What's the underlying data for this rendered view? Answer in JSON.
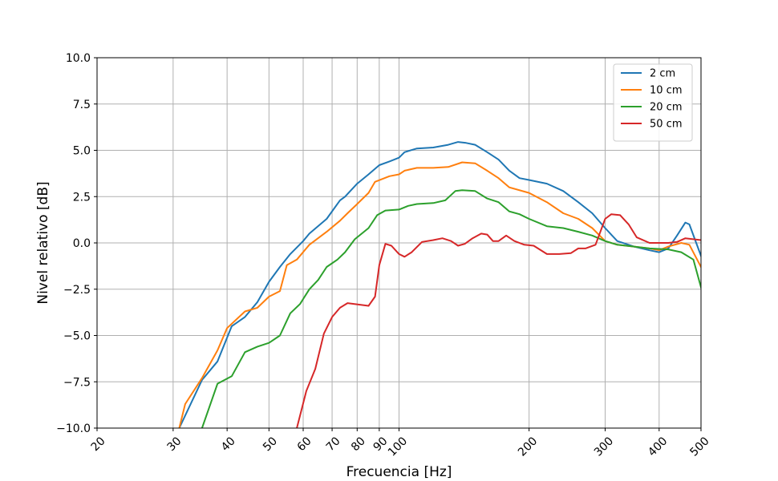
{
  "chart_data": {
    "type": "line",
    "title": "",
    "xlabel": "Frecuencia [Hz]",
    "ylabel": "Nivel relativo [dB]",
    "xscale": "log",
    "xlim": [
      20,
      500
    ],
    "ylim": [
      -10,
      10
    ],
    "grid": true,
    "legend_position": "top-right",
    "xticks": [
      20,
      30,
      40,
      50,
      60,
      70,
      80,
      90,
      100,
      200,
      300,
      400,
      500
    ],
    "xtick_labels": [
      "20",
      "30",
      "40",
      "50",
      "60",
      "70",
      "80",
      "90",
      "100",
      "200",
      "300",
      "400",
      "500"
    ],
    "yticks": [
      -10,
      -7.5,
      -5,
      -2.5,
      0,
      2.5,
      5,
      7.5,
      10
    ],
    "ytick_labels": [
      "−10.0",
      "−7.5",
      "−5.0",
      "−2.5",
      "0.0",
      "2.5",
      "5.0",
      "7.5",
      "10.0"
    ],
    "series": [
      {
        "name": "2 cm",
        "color": "#1f77b4",
        "points": [
          [
            30,
            -11
          ],
          [
            31,
            -10
          ],
          [
            35,
            -7.4
          ],
          [
            38,
            -6.4
          ],
          [
            41,
            -4.5
          ],
          [
            44,
            -4
          ],
          [
            47,
            -3.2
          ],
          [
            50,
            -2.1
          ],
          [
            53,
            -1.3
          ],
          [
            56,
            -0.6
          ],
          [
            60,
            0.1
          ],
          [
            62,
            0.5
          ],
          [
            68,
            1.3
          ],
          [
            73,
            2.3
          ],
          [
            75,
            2.5
          ],
          [
            80,
            3.2
          ],
          [
            85,
            3.7
          ],
          [
            90,
            4.2
          ],
          [
            95,
            4.4
          ],
          [
            100,
            4.6
          ],
          [
            103,
            4.9
          ],
          [
            110,
            5.1
          ],
          [
            120,
            5.15
          ],
          [
            130,
            5.3
          ],
          [
            137,
            5.45
          ],
          [
            143,
            5.4
          ],
          [
            150,
            5.3
          ],
          [
            160,
            4.9
          ],
          [
            170,
            4.5
          ],
          [
            180,
            3.9
          ],
          [
            190,
            3.5
          ],
          [
            200,
            3.4
          ],
          [
            220,
            3.2
          ],
          [
            240,
            2.8
          ],
          [
            260,
            2.2
          ],
          [
            280,
            1.6
          ],
          [
            300,
            0.8
          ],
          [
            320,
            0.1
          ],
          [
            350,
            -0.2
          ],
          [
            380,
            -0.4
          ],
          [
            400,
            -0.5
          ],
          [
            420,
            -0.3
          ],
          [
            440,
            0.4
          ],
          [
            460,
            1.1
          ],
          [
            470,
            1.0
          ],
          [
            500,
            -0.7
          ]
        ]
      },
      {
        "name": "10 cm",
        "color": "#ff7f0e",
        "points": [
          [
            30,
            -10.5
          ],
          [
            31,
            -10
          ],
          [
            32,
            -8.7
          ],
          [
            35,
            -7.3
          ],
          [
            38,
            -5.8
          ],
          [
            40,
            -4.6
          ],
          [
            44,
            -3.7
          ],
          [
            47,
            -3.5
          ],
          [
            50,
            -2.9
          ],
          [
            53,
            -2.6
          ],
          [
            55,
            -1.2
          ],
          [
            58,
            -0.9
          ],
          [
            62,
            -0.1
          ],
          [
            68,
            0.6
          ],
          [
            73,
            1.2
          ],
          [
            76,
            1.6
          ],
          [
            80,
            2.1
          ],
          [
            85,
            2.7
          ],
          [
            88,
            3.3
          ],
          [
            95,
            3.6
          ],
          [
            100,
            3.7
          ],
          [
            103,
            3.9
          ],
          [
            110,
            4.05
          ],
          [
            120,
            4.05
          ],
          [
            130,
            4.1
          ],
          [
            140,
            4.35
          ],
          [
            150,
            4.3
          ],
          [
            160,
            3.9
          ],
          [
            170,
            3.5
          ],
          [
            180,
            3.0
          ],
          [
            200,
            2.7
          ],
          [
            220,
            2.2
          ],
          [
            240,
            1.6
          ],
          [
            260,
            1.3
          ],
          [
            280,
            0.8
          ],
          [
            300,
            0.1
          ],
          [
            320,
            -0.1
          ],
          [
            350,
            -0.2
          ],
          [
            380,
            -0.3
          ],
          [
            400,
            -0.4
          ],
          [
            420,
            -0.2
          ],
          [
            450,
            0
          ],
          [
            470,
            -0.1
          ],
          [
            500,
            -1.3
          ]
        ]
      },
      {
        "name": "20 cm",
        "color": "#2ca02c",
        "points": [
          [
            35,
            -10
          ],
          [
            38,
            -7.6
          ],
          [
            41,
            -7.2
          ],
          [
            44,
            -5.9
          ],
          [
            47,
            -5.6
          ],
          [
            50,
            -5.4
          ],
          [
            53,
            -5
          ],
          [
            56,
            -3.8
          ],
          [
            59,
            -3.3
          ],
          [
            62,
            -2.5
          ],
          [
            65,
            -2
          ],
          [
            68,
            -1.3
          ],
          [
            72,
            -0.9
          ],
          [
            75,
            -0.5
          ],
          [
            79,
            0.2
          ],
          [
            85,
            0.8
          ],
          [
            89,
            1.5
          ],
          [
            93,
            1.75
          ],
          [
            100,
            1.8
          ],
          [
            105,
            2.0
          ],
          [
            110,
            2.1
          ],
          [
            120,
            2.15
          ],
          [
            128,
            2.3
          ],
          [
            135,
            2.8
          ],
          [
            140,
            2.85
          ],
          [
            150,
            2.8
          ],
          [
            160,
            2.4
          ],
          [
            170,
            2.2
          ],
          [
            180,
            1.7
          ],
          [
            190,
            1.55
          ],
          [
            200,
            1.3
          ],
          [
            220,
            0.9
          ],
          [
            240,
            0.8
          ],
          [
            260,
            0.6
          ],
          [
            280,
            0.4
          ],
          [
            300,
            0.1
          ],
          [
            320,
            -0.1
          ],
          [
            350,
            -0.2
          ],
          [
            380,
            -0.3
          ],
          [
            420,
            -0.35
          ],
          [
            450,
            -0.5
          ],
          [
            480,
            -0.9
          ],
          [
            500,
            -2.4
          ]
        ]
      },
      {
        "name": "50 cm",
        "color": "#d62728",
        "points": [
          [
            58,
            -10
          ],
          [
            61,
            -8
          ],
          [
            64,
            -6.8
          ],
          [
            67,
            -4.9
          ],
          [
            70,
            -4
          ],
          [
            73,
            -3.5
          ],
          [
            76,
            -3.25
          ],
          [
            85,
            -3.4
          ],
          [
            88,
            -2.9
          ],
          [
            90,
            -1.2
          ],
          [
            93,
            -0.05
          ],
          [
            96,
            -0.15
          ],
          [
            100,
            -0.6
          ],
          [
            103,
            -0.75
          ],
          [
            107,
            -0.5
          ],
          [
            113,
            0.05
          ],
          [
            120,
            0.15
          ],
          [
            126,
            0.25
          ],
          [
            132,
            0.1
          ],
          [
            137,
            -0.15
          ],
          [
            142,
            -0.05
          ],
          [
            148,
            0.25
          ],
          [
            155,
            0.5
          ],
          [
            160,
            0.45
          ],
          [
            165,
            0.1
          ],
          [
            170,
            0.1
          ],
          [
            177,
            0.4
          ],
          [
            185,
            0.1
          ],
          [
            195,
            -0.1
          ],
          [
            205,
            -0.15
          ],
          [
            220,
            -0.6
          ],
          [
            235,
            -0.6
          ],
          [
            250,
            -0.55
          ],
          [
            260,
            -0.3
          ],
          [
            270,
            -0.3
          ],
          [
            285,
            -0.1
          ],
          [
            300,
            1.3
          ],
          [
            310,
            1.55
          ],
          [
            325,
            1.5
          ],
          [
            340,
            1.0
          ],
          [
            355,
            0.3
          ],
          [
            380,
            0.0
          ],
          [
            420,
            0.0
          ],
          [
            440,
            0.05
          ],
          [
            460,
            0.25
          ],
          [
            500,
            0.15
          ]
        ]
      }
    ]
  }
}
